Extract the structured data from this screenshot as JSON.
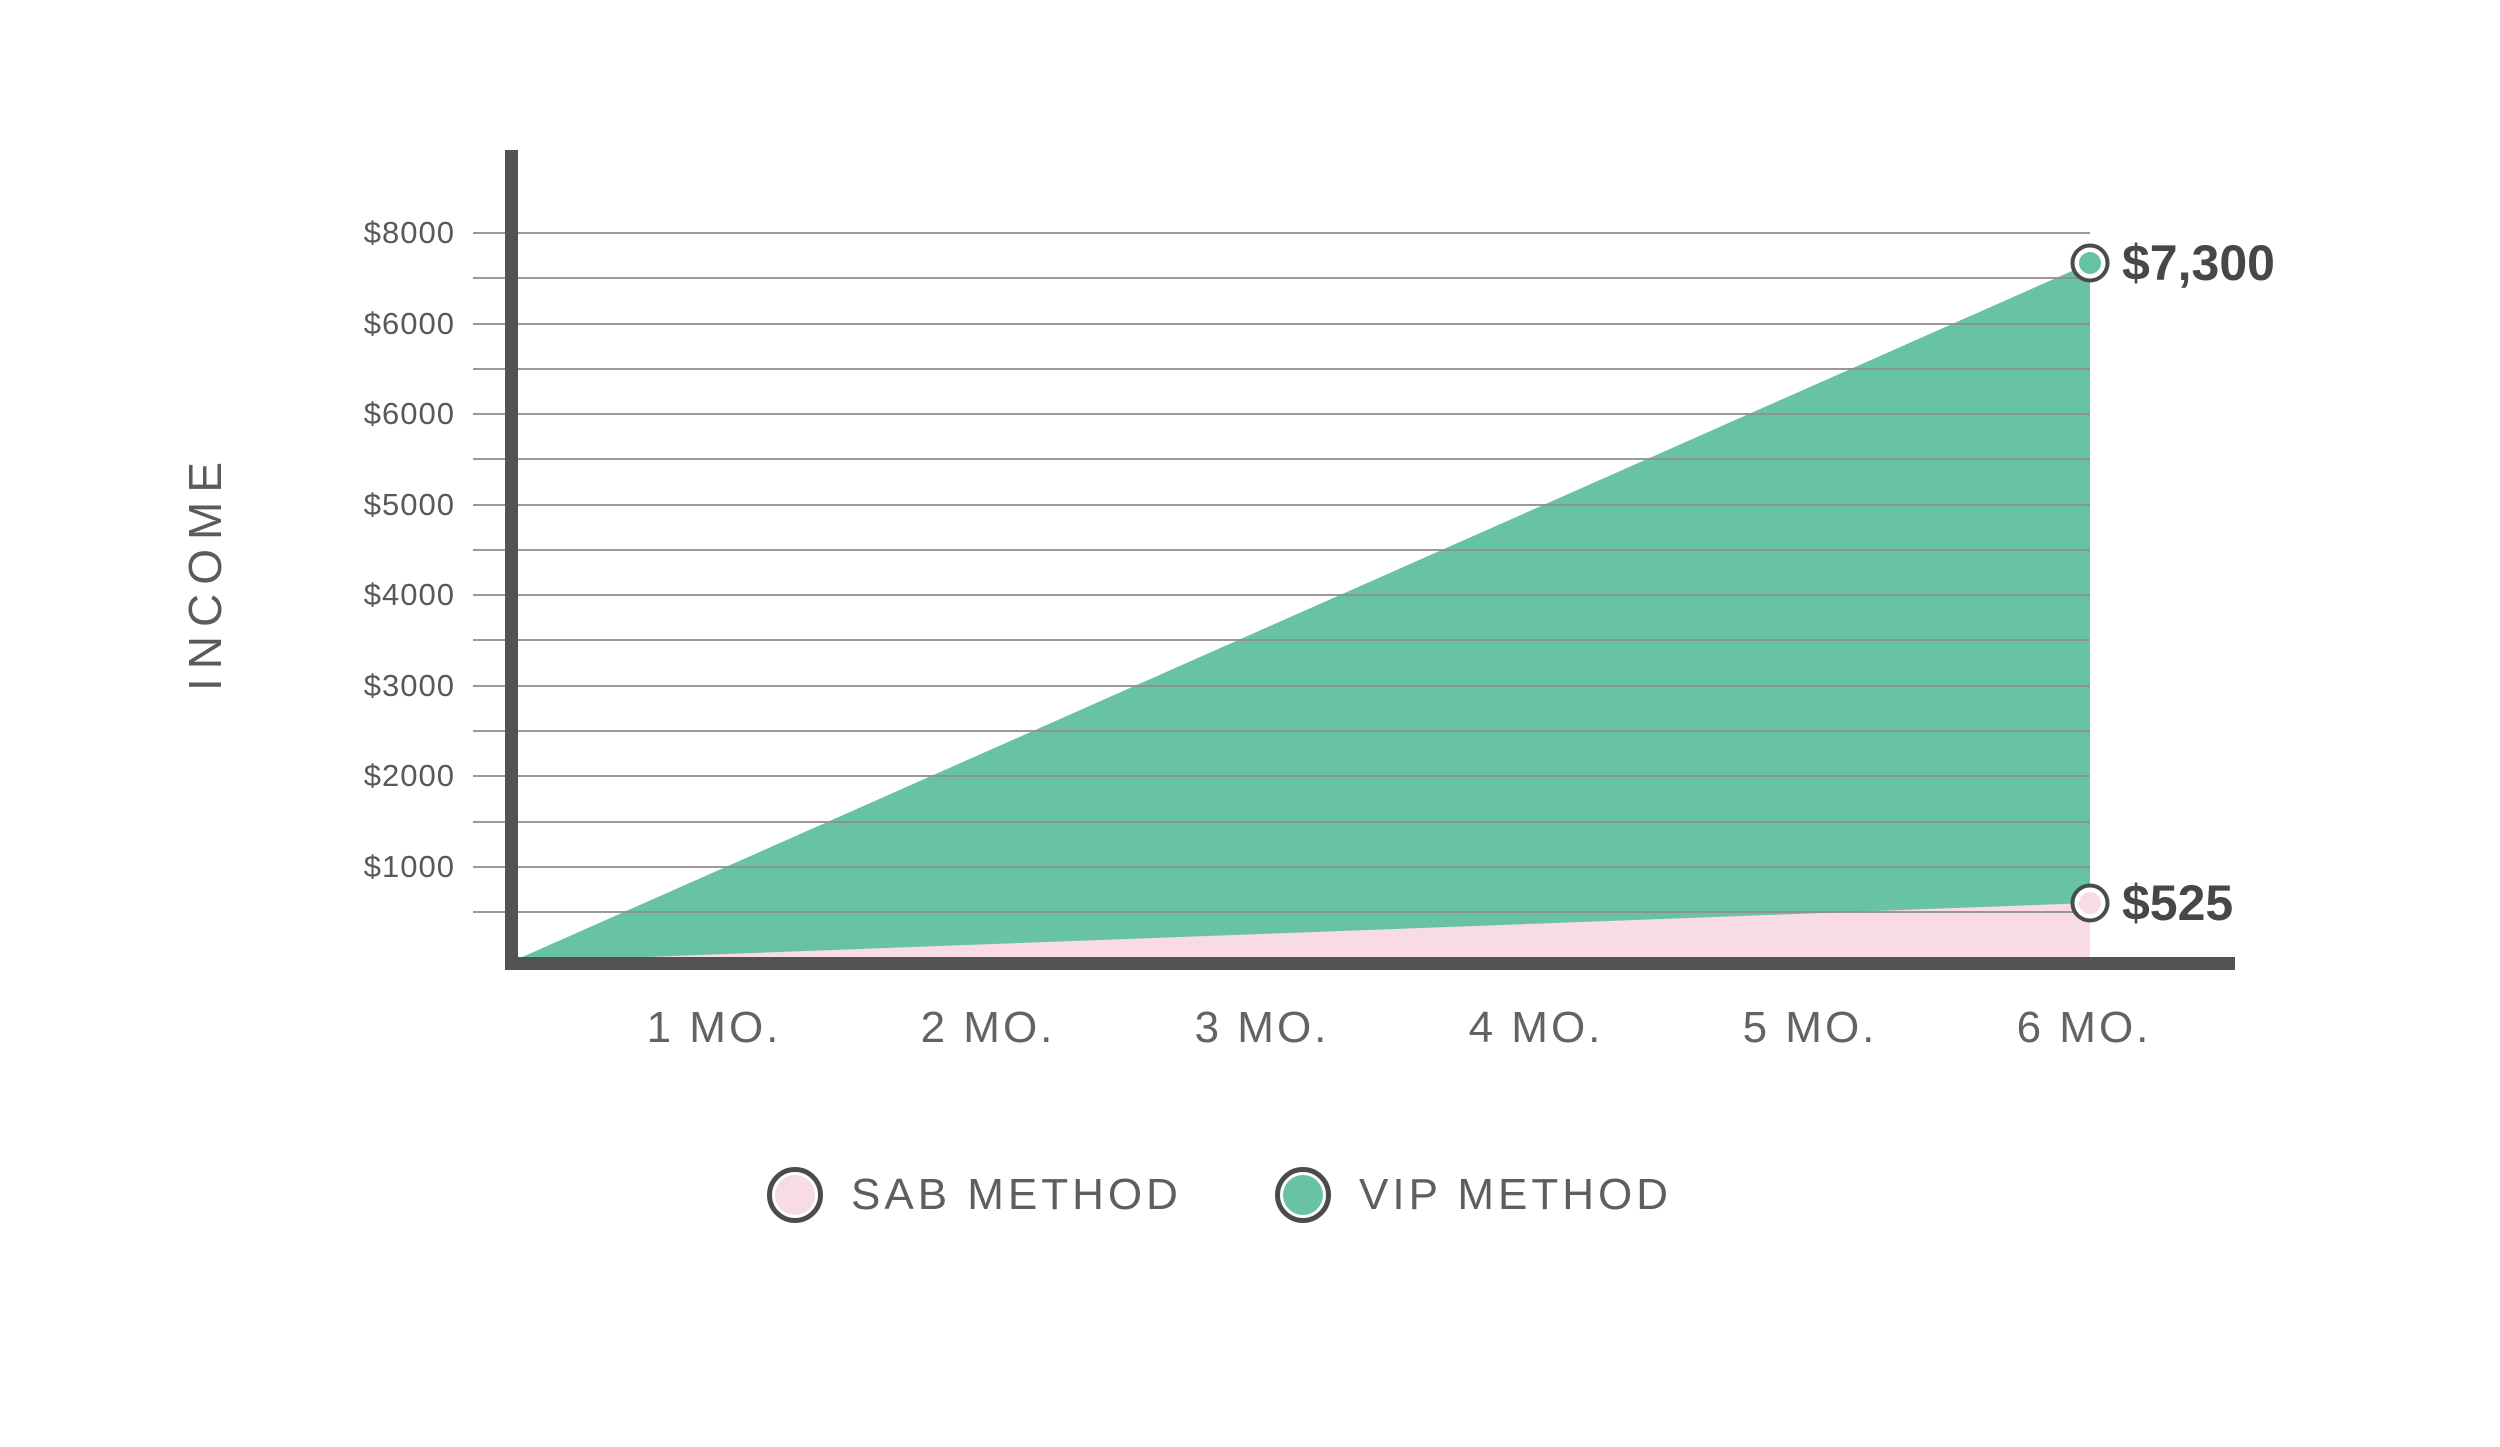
{
  "chart_data": {
    "type": "area",
    "title": "",
    "ylabel": "INCOME",
    "xlabel": "",
    "x_unit": "months",
    "x_tick_labels": [
      "1 MO.",
      "2 MO.",
      "3 MO.",
      "4 MO.",
      "5 MO.",
      "6 MO."
    ],
    "y_tick_labels": [
      "$8000",
      "$6000",
      "$6000",
      "$5000",
      "$4000",
      "$3000",
      "$2000",
      "$1000"
    ],
    "ylim": [
      0,
      8500
    ],
    "grid": "on",
    "gridline_step_dollars": 500,
    "series": [
      {
        "name": "SAB METHOD",
        "color": "#f9dbe3",
        "x_months": [
          0,
          6
        ],
        "values": [
          0,
          525
        ],
        "end_label": "$525"
      },
      {
        "name": "VIP METHOD",
        "color": "#68c3a2",
        "x_months": [
          0,
          6
        ],
        "values": [
          0,
          7300
        ],
        "end_label": "$7,300"
      }
    ],
    "legend": [
      {
        "label": "SAB METHOD",
        "color": "#f9dbe3"
      },
      {
        "label": "VIP METHOD",
        "color": "#68c3a2"
      }
    ],
    "legend_position": "bottom",
    "colors": {
      "axis": "#525355",
      "gridline": "#8f8f8f",
      "tick_text": "#58595b",
      "value_text": "#474747",
      "marker_ring": "#4a4b4d",
      "background": "#ffffff"
    }
  }
}
